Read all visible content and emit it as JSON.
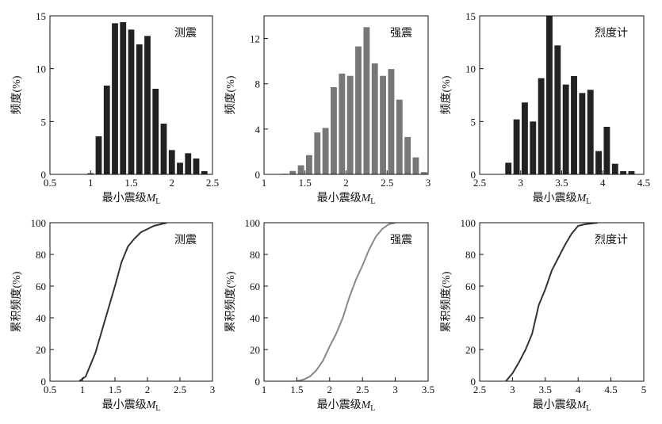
{
  "chart_data": [
    {
      "type": "histogram",
      "annotation": "测震",
      "ylabel": "频度(%)",
      "xlabel": "最小震级",
      "xlabel_symbol": "M",
      "xlabel_sub": "L",
      "color": "#222222",
      "bins": [
        0.95,
        1.05,
        1.15,
        1.25,
        1.35,
        1.45,
        1.55,
        1.65,
        1.75,
        1.85,
        1.95,
        2.05,
        2.15,
        2.25,
        2.35,
        2.45
      ],
      "values": [
        0.1,
        3.6,
        8.4,
        14.3,
        14.4,
        13.7,
        12.3,
        13.1,
        8.1,
        4.8,
        2.3,
        1.1,
        2.0,
        1.5,
        0.3
      ],
      "xlim": [
        0.5,
        2.5
      ],
      "xticks": [
        0.5,
        1,
        1.5,
        2,
        2.5
      ],
      "ylim": [
        0,
        15
      ],
      "yticks": [
        0,
        5,
        10,
        15
      ]
    },
    {
      "type": "histogram",
      "annotation": "强震",
      "ylabel": "频度(%)",
      "xlabel": "最小震级",
      "xlabel_symbol": "M",
      "xlabel_sub": "L",
      "color": "#777777",
      "bins": [
        1.2,
        1.3,
        1.4,
        1.5,
        1.6,
        1.7,
        1.8,
        1.9,
        2.0,
        2.1,
        2.2,
        2.3,
        2.4,
        2.5,
        2.6,
        2.7,
        2.8,
        2.9,
        3.0
      ],
      "values": [
        0.05,
        0.3,
        0.8,
        1.7,
        3.7,
        4.1,
        7.7,
        8.9,
        8.7,
        11.3,
        13.0,
        9.8,
        8.7,
        9.3,
        6.6,
        3.3,
        1.5,
        0.2
      ],
      "xlim": [
        1,
        3
      ],
      "xticks": [
        1,
        1.5,
        2,
        2.5,
        3
      ],
      "ylim": [
        0,
        14
      ],
      "yticks": [
        0,
        4,
        8,
        12
      ]
    },
    {
      "type": "histogram",
      "annotation": "烈度计",
      "ylabel": "频度(%)",
      "xlabel": "最小震级",
      "xlabel_symbol": "M",
      "xlabel_sub": "L",
      "color": "#222222",
      "bins": [
        2.8,
        2.9,
        3.0,
        3.1,
        3.2,
        3.3,
        3.4,
        3.5,
        3.6,
        3.7,
        3.8,
        3.9,
        4.0,
        4.1,
        4.2,
        4.3,
        4.4
      ],
      "values": [
        1.1,
        5.2,
        6.8,
        5.0,
        9.1,
        15.0,
        12.2,
        8.5,
        9.3,
        7.7,
        8.0,
        2.2,
        4.5,
        1.0,
        0.3,
        0.3
      ],
      "xlim": [
        2.5,
        4.5
      ],
      "xticks": [
        2.5,
        3,
        3.5,
        4,
        4.5
      ],
      "ylim": [
        0,
        15
      ],
      "yticks": [
        0,
        5,
        10,
        15
      ]
    },
    {
      "type": "line",
      "annotation": "测震",
      "ylabel": "累积频度(%)",
      "xlabel": "最小震级",
      "xlabel_symbol": "M",
      "xlabel_sub": "L",
      "color": "#333333",
      "x": [
        0.95,
        1.05,
        1.1,
        1.2,
        1.3,
        1.4,
        1.5,
        1.6,
        1.7,
        1.8,
        1.9,
        2.0,
        2.1,
        2.2,
        2.3
      ],
      "y": [
        0,
        3,
        8,
        18,
        32,
        46,
        60,
        75,
        85,
        90,
        94,
        96,
        98,
        99,
        100
      ],
      "xlim": [
        0.5,
        3
      ],
      "xticks": [
        0.5,
        1,
        1.5,
        2,
        2.5,
        3
      ],
      "ylim": [
        0,
        100
      ],
      "yticks": [
        0,
        20,
        40,
        60,
        80,
        100
      ]
    },
    {
      "type": "line",
      "annotation": "强震",
      "ylabel": "累积频度(%)",
      "xlabel": "最小震级",
      "xlabel_symbol": "M",
      "xlabel_sub": "L",
      "color": "#888888",
      "x": [
        1.5,
        1.6,
        1.7,
        1.8,
        1.9,
        2.0,
        2.1,
        2.2,
        2.3,
        2.4,
        2.5,
        2.6,
        2.7,
        2.8,
        2.9,
        3.0
      ],
      "y": [
        0,
        1,
        3,
        7,
        13,
        22,
        30,
        40,
        53,
        64,
        73,
        83,
        91,
        96,
        99,
        100
      ],
      "xlim": [
        1,
        3.5
      ],
      "xticks": [
        1,
        1.5,
        2,
        2.5,
        3,
        3.5
      ],
      "ylim": [
        0,
        100
      ],
      "yticks": [
        0,
        20,
        40,
        60,
        80,
        100
      ]
    },
    {
      "type": "line",
      "annotation": "烈度计",
      "ylabel": "累积频度(%)",
      "xlabel": "最小震级",
      "xlabel_symbol": "M",
      "xlabel_sub": "L",
      "color": "#333333",
      "x": [
        2.9,
        3.0,
        3.1,
        3.2,
        3.3,
        3.4,
        3.5,
        3.6,
        3.7,
        3.8,
        3.9,
        4.0,
        4.1,
        4.3
      ],
      "y": [
        0,
        5,
        12,
        20,
        30,
        48,
        58,
        70,
        78,
        86,
        93,
        98,
        99,
        100
      ],
      "xlim": [
        2.5,
        5
      ],
      "xticks": [
        2.5,
        3,
        3.5,
        4,
        4.5,
        5
      ],
      "ylim": [
        0,
        100
      ],
      "yticks": [
        0,
        20,
        40,
        60,
        80,
        100
      ]
    }
  ]
}
